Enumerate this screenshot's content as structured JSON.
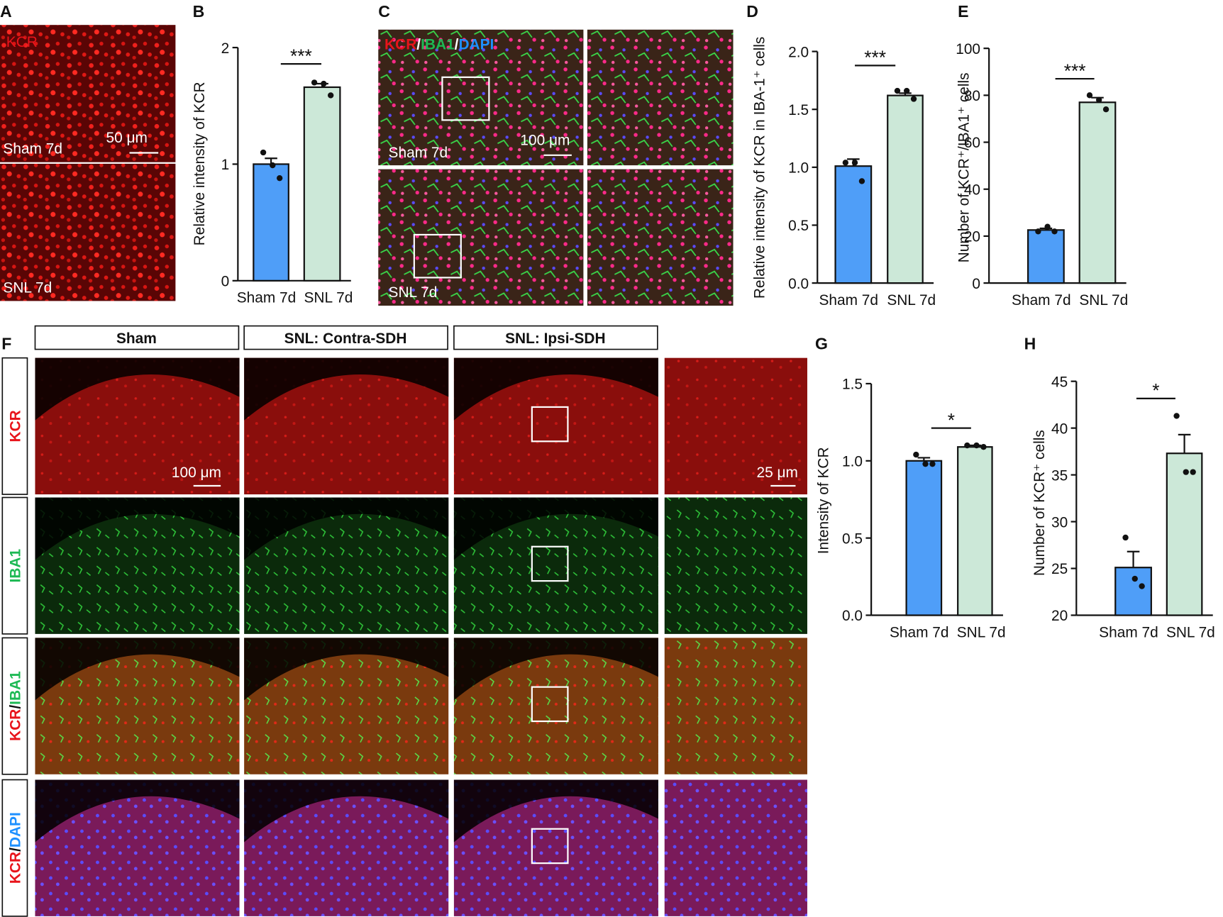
{
  "panels": {
    "letters": [
      "A",
      "B",
      "C",
      "D",
      "E",
      "F",
      "G",
      "H"
    ]
  },
  "panel_a": {
    "stain": "KCR",
    "top_label": "Sham 7d",
    "bottom_label": "SNL 7d",
    "scale_bar": "50 μm"
  },
  "panel_c": {
    "stain": [
      {
        "text": "KCR",
        "color": "#e8141b"
      },
      {
        "text": "/",
        "color": "#ffffff"
      },
      {
        "text": "IBA1",
        "color": "#1db954"
      },
      {
        "text": "/",
        "color": "#ffffff"
      },
      {
        "text": "DAPI",
        "color": "#1e90ff"
      }
    ],
    "top_label": "Sham 7d",
    "bottom_label": "SNL 7d",
    "scale_bar": "100 μm"
  },
  "panel_f": {
    "columns": [
      "Sham",
      "SNL: Contra-SDH",
      "SNL: Ipsi-SDH"
    ],
    "rows": [
      [
        {
          "text": "KCR",
          "color": "#e8141b"
        }
      ],
      [
        {
          "text": "IBA1",
          "color": "#1db954"
        }
      ],
      [
        {
          "text": "KCR",
          "color": "#e8141b"
        },
        {
          "text": "/",
          "color": "#111111"
        },
        {
          "text": "IBA1",
          "color": "#1db954"
        }
      ],
      [
        {
          "text": "KCR",
          "color": "#e8141b"
        },
        {
          "text": "/",
          "color": "#111111"
        },
        {
          "text": "DAPI",
          "color": "#1e90ff"
        }
      ]
    ],
    "scale_bar": "100 μm",
    "inset_scale_bar": "25 μm"
  },
  "chart_data": [
    {
      "type": "bar",
      "ylabel": "Relative intensity of KCR",
      "categories": [
        "Sham 7d",
        "SNL 7d"
      ],
      "values": [
        1.0,
        1.66
      ],
      "errors": [
        0.05,
        0.03
      ],
      "points": [
        [
          1.1,
          0.99,
          0.88
        ],
        [
          1.7,
          1.69,
          1.59
        ]
      ],
      "colors": [
        "#4f9ef8",
        "#cce8d8"
      ],
      "significance": "***",
      "ylim": [
        0,
        2
      ],
      "yticks": [
        0,
        1,
        2
      ]
    },
    {
      "type": "bar",
      "ylabel": "Relative intensity of KCR in IBA-1⁺ cells",
      "categories": [
        "Sham 7d",
        "SNL 7d"
      ],
      "values": [
        1.01,
        1.62
      ],
      "errors": [
        0.06,
        0.02
      ],
      "points": [
        [
          1.04,
          1.04,
          0.88
        ],
        [
          1.66,
          1.66,
          1.59
        ]
      ],
      "colors": [
        "#4f9ef8",
        "#cce8d8"
      ],
      "significance": "***",
      "ylim": [
        0,
        2
      ],
      "yticks": [
        {
          "value": 0,
          "label": "0.0"
        },
        {
          "value": 0.5,
          "label": "0.5"
        },
        {
          "value": 1,
          "label": "1.0"
        },
        {
          "value": 1.5,
          "label": "1.5"
        },
        {
          "value": 2,
          "label": "2.0"
        }
      ]
    },
    {
      "type": "bar",
      "ylabel": "Number of KCR⁺/IBA1⁺ cells",
      "categories": [
        "Sham 7d",
        "SNL 7d"
      ],
      "values": [
        22.6,
        77
      ],
      "errors": [
        0.7,
        2
      ],
      "points": [
        [
          22,
          24,
          22
        ],
        [
          80,
          78,
          74
        ]
      ],
      "colors": [
        "#4f9ef8",
        "#cce8d8"
      ],
      "significance": "***",
      "ylim": [
        0,
        100
      ],
      "yticks": [
        0,
        20,
        40,
        60,
        80,
        100
      ]
    },
    {
      "type": "bar",
      "ylabel": "Intensity of KCR",
      "categories": [
        "Sham 7d",
        "SNL 7d"
      ],
      "values": [
        1.0,
        1.09
      ],
      "errors": [
        0.02,
        0.01
      ],
      "points": [
        [
          1.04,
          0.98,
          0.98
        ],
        [
          1.1,
          1.1,
          1.09
        ]
      ],
      "colors": [
        "#4f9ef8",
        "#cce8d8"
      ],
      "significance": "*",
      "ylim": [
        0,
        1.5
      ],
      "yticks": [
        {
          "value": 0,
          "label": "0.0"
        },
        {
          "value": 0.5,
          "label": "0.5"
        },
        {
          "value": 1,
          "label": "1.0"
        },
        {
          "value": 1.5,
          "label": "1.5"
        }
      ]
    },
    {
      "type": "bar",
      "ylabel": "Number of KCR⁺ cells",
      "categories": [
        "Sham 7d",
        "SNL 7d"
      ],
      "values": [
        25.1,
        37.3
      ],
      "errors": [
        1.7,
        2.0
      ],
      "points": [
        [
          28.3,
          23.9,
          23.1
        ],
        [
          41.3,
          35.3,
          35.3
        ]
      ],
      "colors": [
        "#4f9ef8",
        "#cce8d8"
      ],
      "significance": "*",
      "ylim": [
        20,
        45
      ],
      "yticks": [
        20,
        25,
        30,
        35,
        40,
        45
      ]
    }
  ]
}
